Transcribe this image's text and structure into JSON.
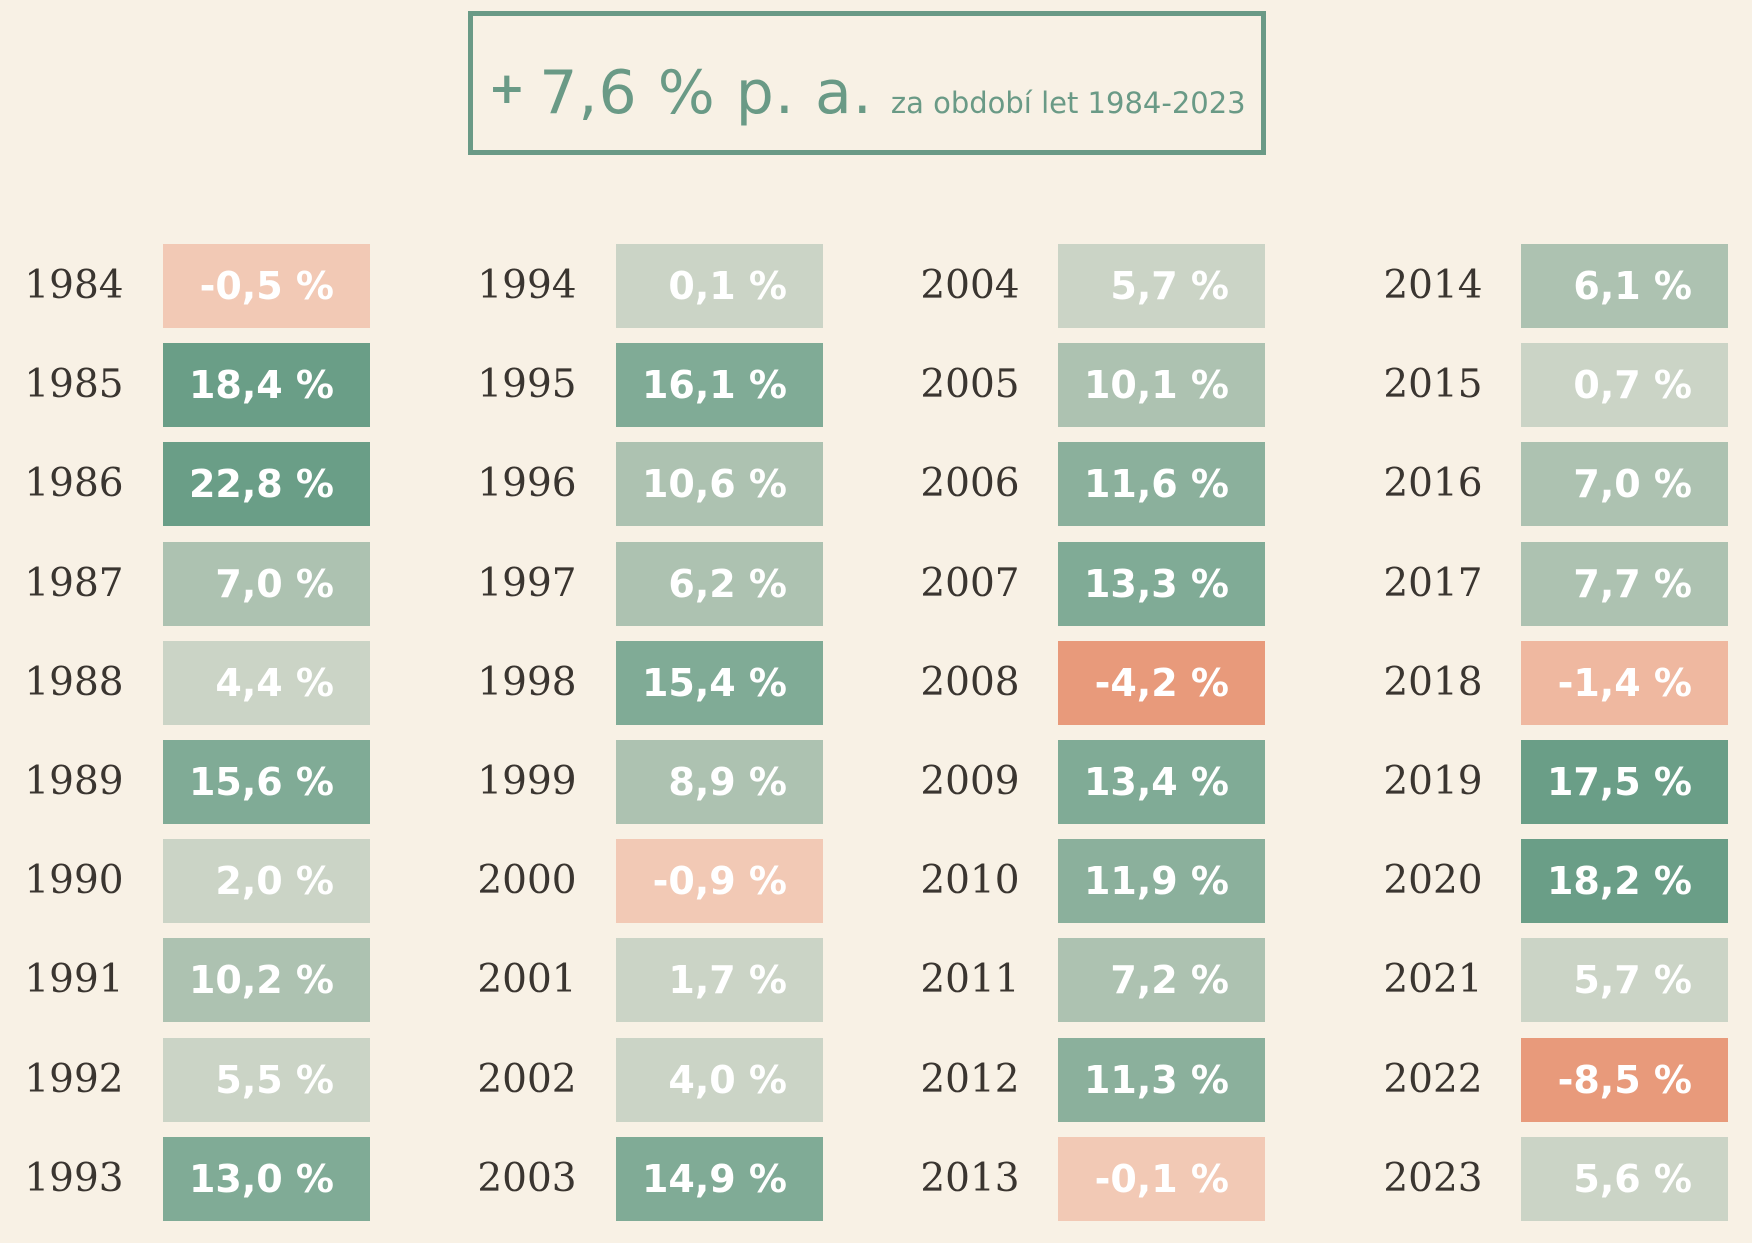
{
  "banner": {
    "plus": "+",
    "value": "7,6 % p. a.",
    "note": "za období let 1984-2023"
  },
  "colors": {
    "background": "#f8f1e5",
    "accent": "#6a9a86",
    "year_text": "#3a3530",
    "scale": {
      "strong_negative": "#e89a7b",
      "negative": "#efb8a0",
      "slight_negative": "#f2c9b5",
      "low": "#cbd4c6",
      "mid": "#adc2b1",
      "mid_high": "#8bb09c",
      "high": "#80ab96",
      "very_high": "#6a9e87"
    }
  },
  "chart_data": {
    "type": "table",
    "columns": [
      {
        "years": [
          "1984",
          "1985",
          "1986",
          "1987",
          "1988",
          "1989",
          "1990",
          "1991",
          "1992",
          "1993"
        ],
        "labels": [
          "-0,5 %",
          "18,4 %",
          "22,8 %",
          "7,0 %",
          "4,4 %",
          "15,6 %",
          "2,0 %",
          "10,2 %",
          "5,5 %",
          "13,0 %"
        ],
        "values": [
          -0.5,
          18.4,
          22.8,
          7.0,
          4.4,
          15.6,
          2.0,
          10.2,
          5.5,
          13.0
        ]
      },
      {
        "years": [
          "1994",
          "1995",
          "1996",
          "1997",
          "1998",
          "1999",
          "2000",
          "2001",
          "2002",
          "2003"
        ],
        "labels": [
          "0,1 %",
          "16,1 %",
          "10,6 %",
          "6,2 %",
          "15,4 %",
          "8,9 %",
          "-0,9 %",
          "1,7 %",
          "4,0 %",
          "14,9 %"
        ],
        "values": [
          0.1,
          16.1,
          10.6,
          6.2,
          15.4,
          8.9,
          -0.9,
          1.7,
          4.0,
          14.9
        ]
      },
      {
        "years": [
          "2004",
          "2005",
          "2006",
          "2007",
          "2008",
          "2009",
          "2010",
          "2011",
          "2012",
          "2013"
        ],
        "labels": [
          "5,7 %",
          "10,1 %",
          "11,6 %",
          "13,3 %",
          "-4,2 %",
          "13,4 %",
          "11,9 %",
          "7,2 %",
          "11,3 %",
          "-0,1 %"
        ],
        "values": [
          5.7,
          10.1,
          11.6,
          13.3,
          -4.2,
          13.4,
          11.9,
          7.2,
          11.3,
          -0.1
        ]
      },
      {
        "years": [
          "2014",
          "2015",
          "2016",
          "2017",
          "2018",
          "2019",
          "2020",
          "2021",
          "2022",
          "2023"
        ],
        "labels": [
          "6,1 %",
          "0,7 %",
          "7,0 %",
          "7,7 %",
          "-1,4 %",
          "17,5 %",
          "18,2 %",
          "5,7 %",
          "-8,5 %",
          "5,6 %"
        ],
        "values": [
          6.1,
          0.7,
          7.0,
          7.7,
          -1.4,
          17.5,
          18.2,
          5.7,
          -8.5,
          5.6
        ]
      }
    ]
  }
}
